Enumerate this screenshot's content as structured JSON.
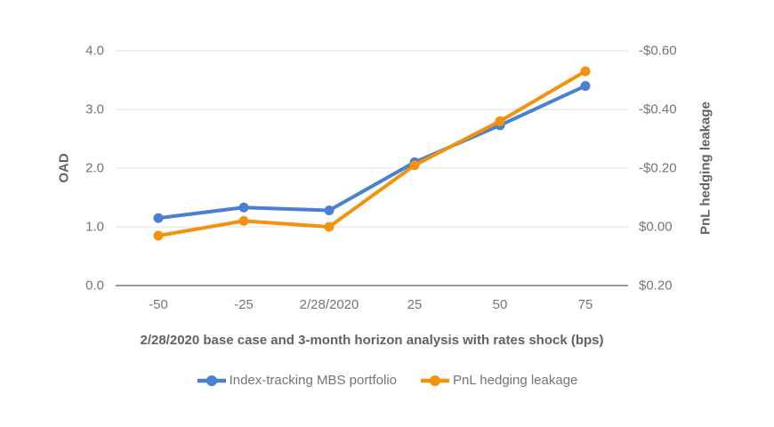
{
  "chart_data": {
    "type": "line",
    "title": "",
    "x": {
      "title": "2/28/2020 base case and 3-month horizon analysis with rates shock (bps)",
      "categories": [
        "-50",
        "-25",
        "2/28/2020",
        "25",
        "50",
        "75"
      ]
    },
    "y_left": {
      "title": "OAD",
      "min": 0,
      "max": 4,
      "tick_values": [
        0,
        1,
        2,
        3,
        4
      ],
      "tick_labels": [
        "0.0",
        "1.0",
        "2.0",
        "3.0",
        "4.0"
      ]
    },
    "y_right": {
      "title": "PnL hedging leakage",
      "top_value": -0.6,
      "bottom_value": 0.2,
      "reversed": true,
      "tick_values": [
        -0.6,
        -0.4,
        -0.2,
        0.0,
        0.2
      ],
      "tick_labels": [
        "-$0.60",
        "-$0.40",
        "-$0.20",
        "$0.00",
        "$0.20"
      ]
    },
    "series": [
      {
        "name": "Index-tracking MBS portfolio",
        "axis": "left",
        "color": "#4a80d2",
        "values": [
          1.15,
          1.33,
          1.28,
          2.1,
          2.73,
          3.4
        ]
      },
      {
        "name": "PnL hedging leakage",
        "axis": "right",
        "color": "#f2920d",
        "values": [
          0.03,
          -0.02,
          0.0,
          -0.21,
          -0.36,
          -0.53
        ]
      }
    ],
    "legend_position": "bottom",
    "grid": true
  },
  "style": {
    "grid_color": "#e0e0e0",
    "baseline_color": "#757575",
    "tick_text_color": "#757575",
    "axis_title_color": "#5f6368",
    "background": "#ffffff"
  }
}
